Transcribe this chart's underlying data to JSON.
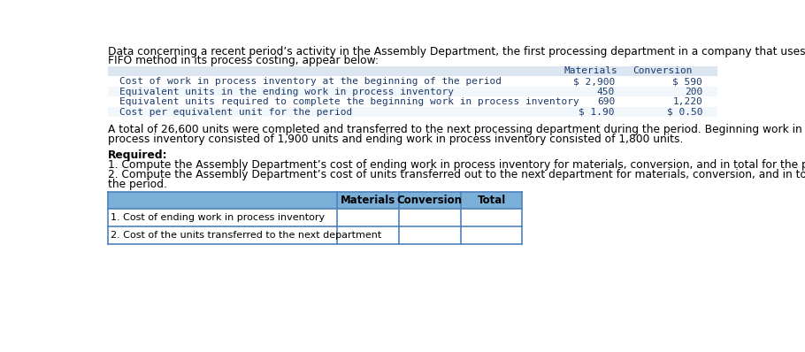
{
  "intro_text_line1": "Data concerning a recent period’s activity in the Assembly Department, the first processing department in a company that uses the",
  "intro_text_line2": "FIFO method in its process costing, appear below:",
  "top_table_headers": [
    "Materials",
    "Conversion"
  ],
  "top_table_rows": [
    {
      "label": "Cost of work in process inventory at the beginning of the period",
      "mat": "$ 2,900",
      "conv": "$ 590"
    },
    {
      "label": "Equivalent units in the ending work in process inventory",
      "mat": "450",
      "conv": "200"
    },
    {
      "label": "Equivalent units required to complete the beginning work in process inventory",
      "mat": "690",
      "conv": "1,220"
    },
    {
      "label": "Cost per equivalent unit for the period",
      "mat": "$ 1.90",
      "conv": "$ 0.50"
    }
  ],
  "middle_text_line1": "A total of 26,600 units were completed and transferred to the next processing department during the period. Beginning work in",
  "middle_text_line2": "process inventory consisted of 1,900 units and ending work in process inventory consisted of 1,800 units.",
  "required_label": "Required:",
  "required_line1": "1. Compute the Assembly Department’s cost of ending work in process inventory for materials, conversion, and in total for the period.",
  "required_line2": "2. Compute the Assembly Department’s cost of units transferred out to the next department for materials, conversion, and in total for",
  "required_line3": "the period.",
  "bottom_table_row1": "1. Cost of ending work in process inventory",
  "bottom_table_row2": "2. Cost of the units transferred to the next department",
  "header_bg_color": "#7ab0d8",
  "top_table_header_bg": "#dce6f1",
  "top_table_alt_bg": "#f2f7fc",
  "table_border_color": "#4f81bd",
  "text_color": "#000000",
  "mono_color": "#1a3a6b",
  "bg_color": "#ffffff",
  "intro_fs": 8.8,
  "table_fs": 8.0,
  "body_fs": 8.8
}
